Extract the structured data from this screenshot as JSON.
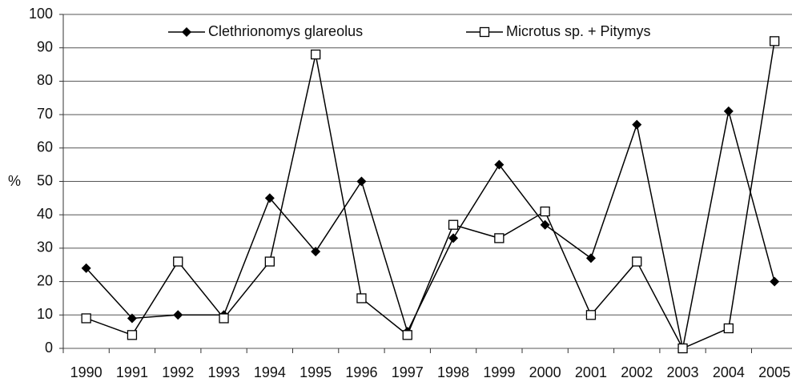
{
  "chart_data": {
    "type": "line",
    "y_label": "%",
    "categories": [
      "1990",
      "1991",
      "1992",
      "1993",
      "1994",
      "1995",
      "1996",
      "1997",
      "1998",
      "1999",
      "2000",
      "2001",
      "2002",
      "2003",
      "2004",
      "2005"
    ],
    "series": [
      {
        "name": "Clethrionomys glareolus",
        "color": "#000000",
        "marker": "diamond",
        "values": [
          24,
          9,
          10,
          10,
          45,
          29,
          50,
          5,
          33,
          55,
          37,
          27,
          67,
          0,
          71,
          20
        ]
      },
      {
        "name": "Microtus sp. + Pitymys",
        "color": "#000000",
        "marker": "square",
        "values": [
          9,
          4,
          26,
          9,
          26,
          88,
          15,
          4,
          37,
          33,
          41,
          10,
          26,
          0,
          6,
          92
        ]
      }
    ],
    "ylim": [
      0,
      100
    ],
    "yticks": [
      0,
      10,
      20,
      30,
      40,
      50,
      60,
      70,
      80,
      90,
      100
    ],
    "grid": true,
    "legend": "top"
  }
}
